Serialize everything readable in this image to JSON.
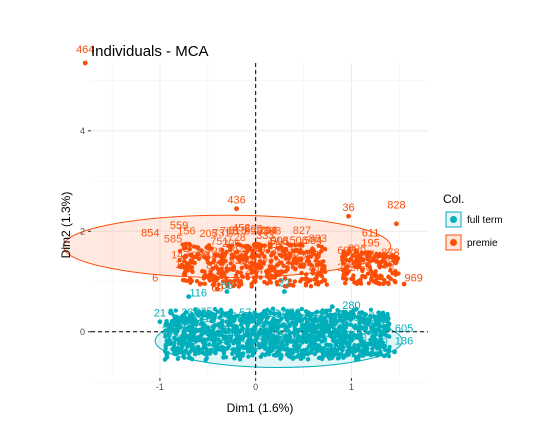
{
  "chart_data": {
    "type": "scatter",
    "title": "Individuals - MCA",
    "xlabel": "Dim1 (1.6%)",
    "ylabel": "Dim2 (1.3%)",
    "xlim": [
      -1.72,
      1.8
    ],
    "ylim": [
      -0.92,
      5.35
    ],
    "x_ticks": [
      -1,
      0,
      1
    ],
    "y_ticks": [
      0,
      2,
      4
    ],
    "grid": true,
    "reference_lines": {
      "x": 0,
      "y": 0
    },
    "legend": {
      "title": "Col.",
      "position": "right"
    },
    "series": [
      {
        "name": "full term",
        "color": "#00AFBB",
        "cluster_center": [
          0.15,
          0.0
        ],
        "ellipse": {
          "cx": 0.24,
          "cy": -0.18,
          "rx": 1.29,
          "ry": 0.53
        },
        "points": [
          {
            "x": -0.7,
            "y": 0.7
          },
          {
            "x": -0.3,
            "y": 0.8
          },
          {
            "x": 0.3,
            "y": 0.8
          },
          {
            "x": 1.05,
            "y": 0.45
          },
          {
            "x": 1.3,
            "y": -0.2
          },
          {
            "x": 1.45,
            "y": -0.4
          },
          {
            "x": -1.0,
            "y": 0.2
          },
          {
            "x": 0.8,
            "y": 0.5
          }
        ],
        "labels": [
          {
            "text": "66",
            "x": -0.3,
            "y": 0.85
          },
          {
            "text": "7",
            "x": 1.35,
            "y": 0.05
          },
          {
            "text": "605",
            "x": 1.55,
            "y": 0.0
          },
          {
            "text": "136",
            "x": 1.55,
            "y": -0.25
          },
          {
            "text": "21",
            "x": -1.0,
            "y": 0.3
          },
          {
            "text": "116",
            "x": -0.6,
            "y": 0.7
          },
          {
            "text": "280",
            "x": 1.0,
            "y": 0.45
          },
          {
            "text": "22",
            "x": 0.3,
            "y": 0.9
          }
        ]
      },
      {
        "name": "premie",
        "color": "#FC4E07",
        "cluster_center": [
          0.0,
          1.4
        ],
        "ellipse": {
          "cx": -0.3,
          "cy": 1.7,
          "rx": 1.71,
          "ry": 0.62
        },
        "points": [
          {
            "x": -1.78,
            "y": 5.35
          },
          {
            "x": -0.2,
            "y": 2.45
          },
          {
            "x": 0.97,
            "y": 2.3
          },
          {
            "x": 1.47,
            "y": 2.15
          },
          {
            "x": 1.55,
            "y": 0.95
          },
          {
            "x": -0.4,
            "y": 0.85
          },
          {
            "x": 1.05,
            "y": 1.6
          },
          {
            "x": 0.5,
            "y": 1.3
          }
        ],
        "labels": [
          {
            "text": "464",
            "x": -1.78,
            "y": 5.55
          },
          {
            "text": "436",
            "x": -0.2,
            "y": 2.55
          },
          {
            "text": "36",
            "x": 0.97,
            "y": 2.4
          },
          {
            "text": "828",
            "x": 1.47,
            "y": 2.45
          },
          {
            "text": "611",
            "x": 1.2,
            "y": 1.9
          },
          {
            "text": "195",
            "x": 1.2,
            "y": 1.7
          },
          {
            "text": "969",
            "x": 1.65,
            "y": 1.0
          },
          {
            "text": "69",
            "x": -0.4,
            "y": 0.8
          },
          {
            "text": "6",
            "x": -1.05,
            "y": 1.0
          },
          {
            "text": "854",
            "x": -1.1,
            "y": 1.9
          },
          {
            "text": "559",
            "x": -0.8,
            "y": 2.05
          },
          {
            "text": "452",
            "x": -0.15,
            "y": 2.0
          },
          {
            "text": "333",
            "x": 0.1,
            "y": 1.85
          },
          {
            "text": "908",
            "x": 0.25,
            "y": 1.75
          },
          {
            "text": "506",
            "x": 0.45,
            "y": 1.75
          },
          {
            "text": "584",
            "x": 0.6,
            "y": 1.75
          },
          {
            "text": "41",
            "x": 1.0,
            "y": 1.55
          },
          {
            "text": "413",
            "x": 0.65,
            "y": 1.2
          },
          {
            "text": "13",
            "x": 0.2,
            "y": 1.3
          }
        ]
      }
    ]
  }
}
